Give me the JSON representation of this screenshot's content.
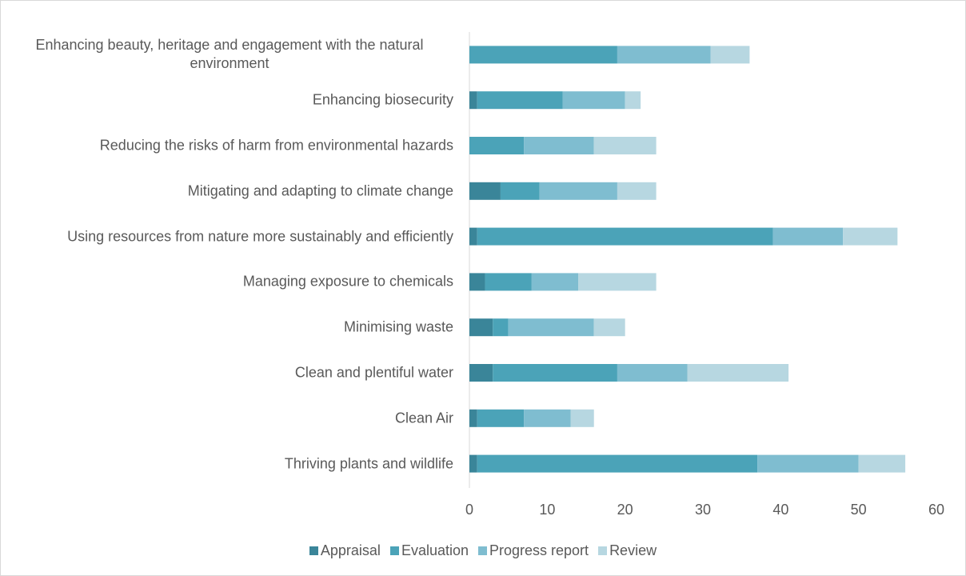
{
  "chart_data": {
    "type": "stacked_barh",
    "categories": [
      "Enhancing beauty, heritage and engagement with the natural environment",
      "Enhancing biosecurity",
      "Reducing the risks of harm from environmental hazards",
      "Mitigating and adapting to climate change",
      "Using resources from nature more sustainably and efficiently",
      "Managing exposure to chemicals",
      "Minimising waste",
      "Clean and plentiful water",
      "Clean Air",
      "Thriving plants and wildlife"
    ],
    "series": [
      {
        "name": "Appraisal",
        "color": "#3a8599",
        "values": [
          0,
          1,
          0,
          4,
          1,
          2,
          3,
          3,
          1,
          1
        ]
      },
      {
        "name": "Evaluation",
        "color": "#4ba3b8",
        "values": [
          19,
          11,
          7,
          5,
          38,
          6,
          2,
          16,
          6,
          36
        ]
      },
      {
        "name": "Progress report",
        "color": "#7fbdd0",
        "values": [
          12,
          8,
          9,
          10,
          9,
          6,
          11,
          9,
          6,
          13
        ]
      },
      {
        "name": "Review",
        "color": "#b7d7e1",
        "values": [
          5,
          2,
          8,
          5,
          7,
          10,
          4,
          13,
          3,
          6
        ]
      }
    ],
    "xlim": [
      0,
      60
    ],
    "xticks": [
      0,
      10,
      20,
      30,
      40,
      50,
      60
    ],
    "legend": "bottom"
  }
}
